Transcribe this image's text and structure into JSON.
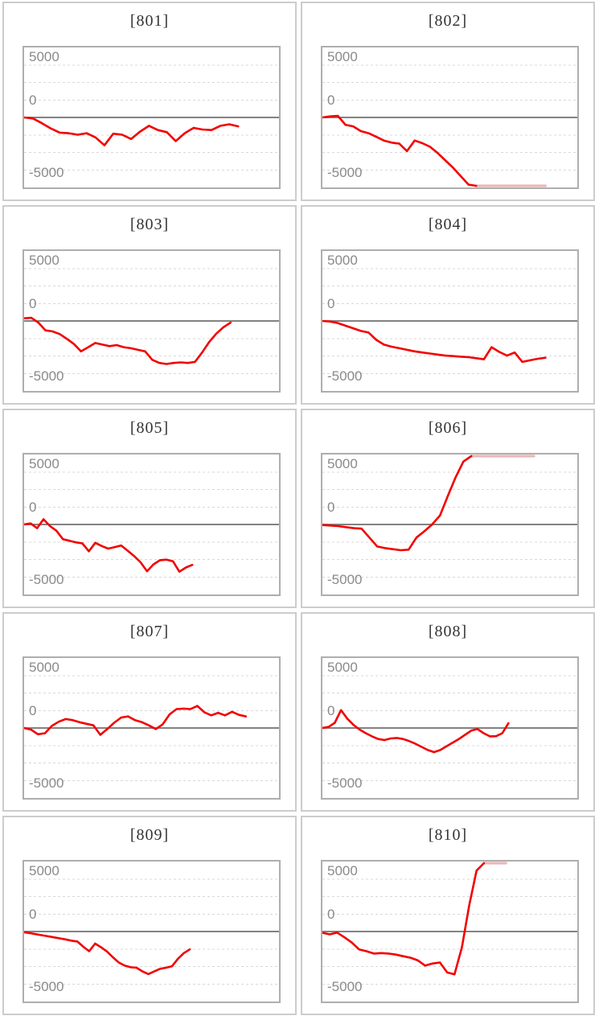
{
  "axis": {
    "labels": [
      "5000",
      "0",
      "-5000"
    ],
    "ylim": [
      -6667,
      6667
    ],
    "grid_step": 1667,
    "grid_on": true
  },
  "colors": {
    "line": "#f20000",
    "clipped_line": "#eab8ba",
    "zero_line": "#828282",
    "grid": "#d8d8d8",
    "plot_border": "#aeaeae",
    "card_border": "#cccccc",
    "title": "#333333",
    "tick": "#8a8a8a",
    "background": "#ffffff"
  },
  "chart_data": [
    {
      "type": "line",
      "title": "[801]",
      "ylabel_ticks": [
        "5000",
        "0",
        "-5000"
      ],
      "ylim": [
        -6667,
        6667
      ],
      "x_end_fraction": 0.84,
      "values": [
        0,
        -100,
        -550,
        -1050,
        -1450,
        -1500,
        -1650,
        -1500,
        -1900,
        -2650,
        -1550,
        -1650,
        -2050,
        -1350,
        -800,
        -1200,
        -1400,
        -2250,
        -1500,
        -1000,
        -1150,
        -1200,
        -800,
        -650,
        -850
      ]
    },
    {
      "type": "line",
      "title": "[802]",
      "ylabel_ticks": [
        "5000",
        "0",
        "-5000"
      ],
      "ylim": [
        -6667,
        6667
      ],
      "x_end_fraction": 0.875,
      "values": [
        0,
        100,
        150,
        -700,
        -850,
        -1300,
        -1500,
        -1850,
        -2200,
        -2400,
        -2500,
        -3200,
        -2200,
        -2450,
        -2800,
        -3400,
        -4100,
        -4800,
        -5600,
        -6400,
        -6700,
        -6700,
        -6700,
        -6700,
        -6700,
        -6700,
        -6700,
        -6700,
        -6700,
        -6700
      ]
    },
    {
      "type": "line",
      "title": "[803]",
      "ylabel_ticks": [
        "5000",
        "0",
        "-5000"
      ],
      "ylim": [
        -6667,
        6667
      ],
      "x_end_fraction": 0.81,
      "values": [
        250,
        300,
        -150,
        -900,
        -1000,
        -1250,
        -1700,
        -2200,
        -2900,
        -2500,
        -2100,
        -2250,
        -2400,
        -2300,
        -2500,
        -2600,
        -2750,
        -2900,
        -3700,
        -4000,
        -4100,
        -4000,
        -3950,
        -4000,
        -3900,
        -3000,
        -2000,
        -1200,
        -600,
        -150
      ]
    },
    {
      "type": "line",
      "title": "[804]",
      "ylabel_ticks": [
        "5000",
        "0",
        "-5000"
      ],
      "ylim": [
        -6667,
        6667
      ],
      "x_end_fraction": 0.875,
      "values": [
        0,
        -50,
        -200,
        -450,
        -700,
        -950,
        -1100,
        -1800,
        -2250,
        -2450,
        -2600,
        -2750,
        -2900,
        -3000,
        -3100,
        -3200,
        -3300,
        -3350,
        -3400,
        -3450,
        -3550,
        -3650,
        -2500,
        -2950,
        -3300,
        -3000,
        -3900,
        -3750,
        -3600,
        -3500
      ]
    },
    {
      "type": "line",
      "title": "[805]",
      "ylabel_ticks": [
        "5000",
        "0",
        "-5000"
      ],
      "ylim": [
        -6667,
        6667
      ],
      "x_end_fraction": 0.66,
      "values": [
        0,
        100,
        -350,
        500,
        -150,
        -600,
        -1400,
        -1550,
        -1700,
        -1800,
        -2550,
        -1750,
        -2050,
        -2300,
        -2150,
        -2000,
        -2500,
        -3000,
        -3600,
        -4450,
        -3800,
        -3400,
        -3350,
        -3500,
        -4500,
        -4100,
        -3850
      ]
    },
    {
      "type": "line",
      "title": "[806]",
      "ylabel_ticks": [
        "5000",
        "0",
        "-5000"
      ],
      "ylim": [
        -6667,
        6667
      ],
      "x_end_fraction": 0.83,
      "values": [
        -50,
        -100,
        -150,
        -250,
        -350,
        -400,
        -1250,
        -2100,
        -2250,
        -2350,
        -2450,
        -2400,
        -1250,
        -650,
        0,
        850,
        2700,
        4500,
        6000,
        6700,
        6700,
        6700,
        6700,
        6700,
        6700,
        6700,
        6700,
        6700
      ]
    },
    {
      "type": "line",
      "title": "[807]",
      "ylabel_ticks": [
        "5000",
        "0",
        "-5000"
      ],
      "ylim": [
        -6667,
        6667
      ],
      "x_end_fraction": 0.87,
      "values": [
        0,
        -150,
        -600,
        -500,
        200,
        600,
        850,
        750,
        550,
        400,
        250,
        -650,
        -100,
        500,
        1000,
        1100,
        750,
        550,
        250,
        -100,
        350,
        1300,
        1800,
        1850,
        1800,
        2100,
        1500,
        1200,
        1450,
        1200,
        1550,
        1250,
        1100
      ]
    },
    {
      "type": "line",
      "title": "[808]",
      "ylabel_ticks": [
        "5000",
        "0",
        "-5000"
      ],
      "ylim": [
        -6667,
        6667
      ],
      "x_end_fraction": 0.73,
      "values": [
        0,
        100,
        500,
        1700,
        900,
        300,
        -150,
        -500,
        -800,
        -1050,
        -1150,
        -1000,
        -950,
        -1050,
        -1250,
        -1500,
        -1800,
        -2100,
        -2300,
        -2100,
        -1750,
        -1400,
        -1050,
        -650,
        -250,
        -100,
        -500,
        -800,
        -780,
        -500,
        450
      ]
    },
    {
      "type": "line",
      "title": "[809]",
      "ylabel_ticks": [
        "5000",
        "0",
        "-5000"
      ],
      "ylim": [
        -6667,
        6667
      ],
      "x_end_fraction": 0.65,
      "values": [
        -80,
        -150,
        -250,
        -350,
        -450,
        -550,
        -650,
        -750,
        -870,
        -950,
        -1450,
        -1880,
        -1150,
        -1500,
        -1900,
        -2450,
        -2950,
        -3250,
        -3400,
        -3450,
        -3800,
        -4050,
        -3800,
        -3550,
        -3450,
        -3300,
        -2600,
        -2050,
        -1700
      ]
    },
    {
      "type": "line",
      "title": "[810]",
      "ylabel_ticks": [
        "5000",
        "0",
        "-5000"
      ],
      "ylim": [
        -6667,
        6667
      ],
      "x_end_fraction": 0.72,
      "values": [
        -120,
        -270,
        -100,
        -550,
        -1050,
        -1700,
        -1880,
        -2100,
        -2050,
        -2100,
        -2200,
        -2350,
        -2500,
        -2750,
        -3250,
        -3050,
        -2950,
        -3900,
        -4080,
        -1500,
        2500,
        5800,
        6700,
        6700,
        6700,
        6700
      ]
    }
  ]
}
